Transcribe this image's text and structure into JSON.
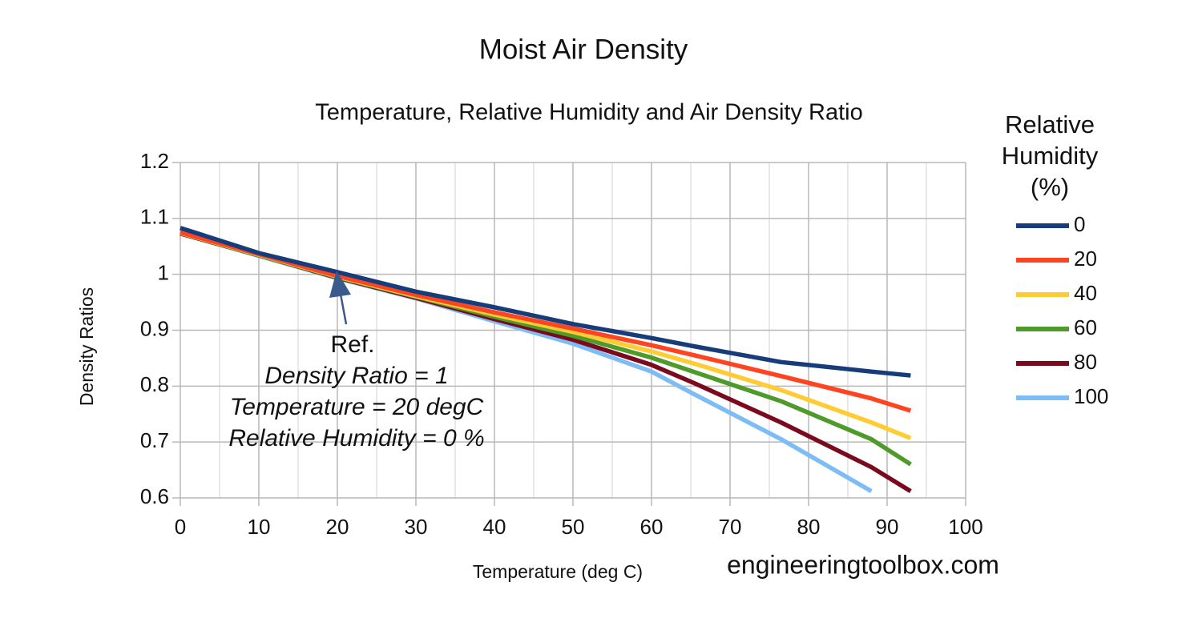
{
  "chart_data": {
    "type": "line",
    "title": "Moist Air Density",
    "subtitle": "Temperature, Relative Humidity and Air Density Ratio",
    "x_label": "Temperature (deg C)",
    "y_label": "Density Ratios",
    "legend_title": [
      "Relative",
      "Humidity",
      "(%)"
    ],
    "legend_position": "right",
    "grid": true,
    "x": [
      0,
      10,
      20,
      30,
      40,
      50,
      60,
      65.5,
      76.5,
      88,
      93
    ],
    "xlim": [
      0,
      100
    ],
    "xticks": [
      0,
      10,
      20,
      30,
      40,
      50,
      60,
      70,
      80,
      90,
      100
    ],
    "xminorticks": [
      5,
      15,
      25,
      35,
      45,
      55,
      65,
      75,
      85,
      95
    ],
    "ylim": [
      0.6,
      1.2
    ],
    "yticks": [
      0.6,
      0.7,
      0.8,
      0.9,
      1,
      1.1,
      1.2
    ],
    "series": [
      {
        "name": "0",
        "color": "#173c7a",
        "values": [
          1.083,
          1.038,
          1.004,
          0.969,
          0.941,
          0.911,
          0.886,
          0.871,
          0.843,
          0.826,
          0.819
        ]
      },
      {
        "name": "20",
        "color": "#ff4422",
        "values": [
          1.075,
          1.036,
          0.997,
          0.963,
          0.932,
          0.903,
          0.873,
          0.855,
          0.818,
          0.778,
          0.756
        ]
      },
      {
        "name": "40",
        "color": "#ffcc33",
        "values": [
          1.074,
          1.035,
          0.996,
          0.961,
          0.928,
          0.897,
          0.862,
          0.84,
          0.793,
          0.735,
          0.707
        ]
      },
      {
        "name": "60",
        "color": "#4e9a2a",
        "values": [
          1.074,
          1.034,
          0.995,
          0.96,
          0.924,
          0.89,
          0.851,
          0.825,
          0.773,
          0.705,
          0.66
        ]
      },
      {
        "name": "80",
        "color": "#7b0a1e",
        "values": [
          1.073,
          1.034,
          0.994,
          0.958,
          0.92,
          0.883,
          0.838,
          0.805,
          0.735,
          0.655,
          0.612
        ]
      },
      {
        "name": "100",
        "color": "#7ebcf5",
        "values": [
          1.073,
          1.033,
          0.993,
          0.957,
          0.916,
          0.876,
          0.826,
          0.785,
          0.705,
          0.612,
          null
        ]
      }
    ],
    "annotation": [
      "Ref.",
      "Density Ratio = 1",
      "Temperature = 20 degC",
      "Relative Humidity = 0 %"
    ],
    "watermark": "engineeringtoolbox.com"
  }
}
